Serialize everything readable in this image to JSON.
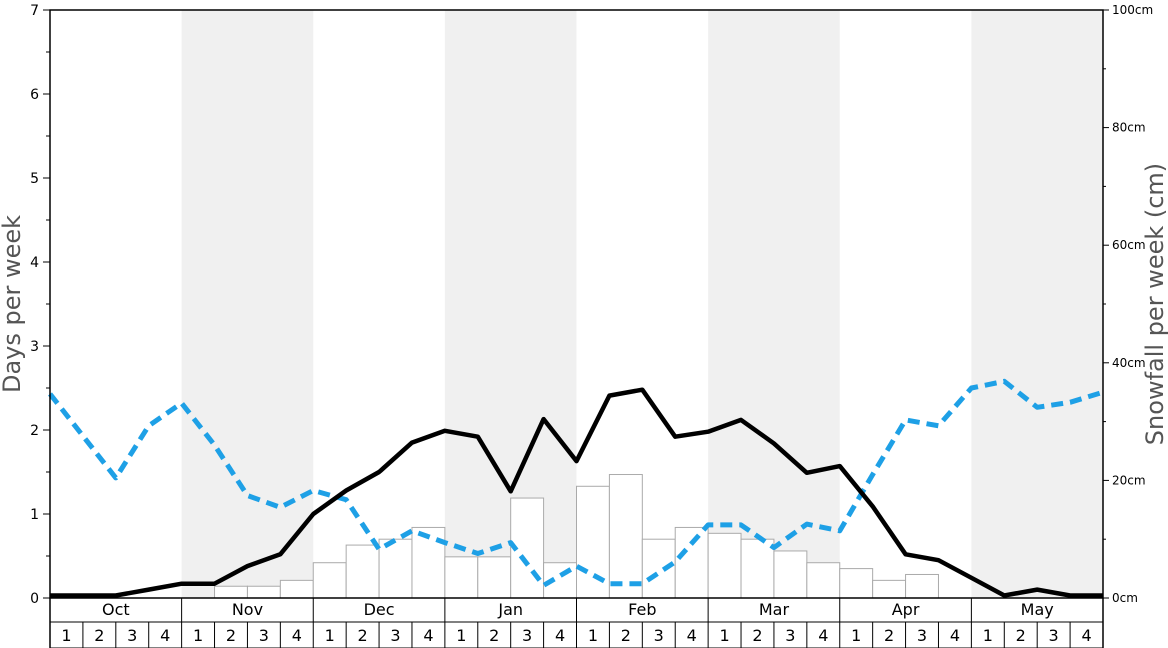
{
  "chart_data": {
    "type": "bar",
    "ylabel_left": "Days per week",
    "ylabel_right": "Snowfall per week (cm)",
    "y_left_range": [
      0,
      7
    ],
    "y_left_ticks": [
      "0",
      "1",
      "2",
      "3",
      "4",
      "5",
      "6",
      "7"
    ],
    "y_right_range": [
      0,
      100
    ],
    "y_right_ticks": [
      "0cm",
      "20cm",
      "40cm",
      "60cm",
      "80cm",
      "100cm"
    ],
    "months": [
      "Oct",
      "Nov",
      "Dec",
      "Jan",
      "Feb",
      "Mar",
      "Apr",
      "May"
    ],
    "weeks": [
      "1",
      "2",
      "3",
      "4"
    ],
    "colors": {
      "band_shade": "#f0f0f0",
      "bar_fill": "#ffffff",
      "bar_stroke": "#aaaaaa",
      "solid_line": "#000000",
      "dashed_line": "#1ea0e6"
    },
    "snowfall_bars_cm": [
      0,
      0,
      0,
      0,
      0,
      2,
      2,
      3,
      6,
      9,
      10,
      12,
      7,
      7,
      17,
      6,
      19,
      21,
      10,
      12,
      11,
      10,
      8,
      6,
      5,
      3,
      4,
      0,
      0,
      0,
      0,
      0
    ],
    "solid_series_days": [
      0.03,
      0.03,
      0.03,
      0.1,
      0.17,
      0.17,
      0.38,
      0.52,
      1.0,
      1.28,
      1.5,
      1.85,
      1.99,
      1.92,
      1.27,
      2.13,
      1.63,
      2.41,
      2.48,
      1.92,
      1.98,
      2.12,
      1.84,
      1.49,
      1.57,
      1.09,
      0.52,
      0.45,
      0.24,
      0.03,
      0.1,
      0.03,
      0.03
    ],
    "dashed_series_days": [
      2.43,
      1.93,
      1.43,
      2.05,
      2.32,
      1.82,
      1.22,
      1.08,
      1.28,
      1.17,
      0.58,
      0.8,
      0.66,
      0.53,
      0.66,
      0.15,
      0.38,
      0.17,
      0.17,
      0.43,
      0.87,
      0.87,
      0.6,
      0.88,
      0.8,
      1.47,
      2.12,
      2.05,
      2.5,
      2.58,
      2.27,
      2.33,
      2.45
    ]
  }
}
